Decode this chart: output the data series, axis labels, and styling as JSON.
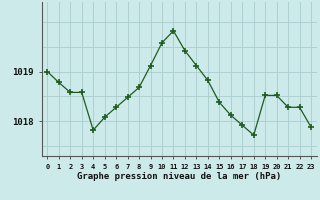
{
  "hours": [
    0,
    1,
    2,
    3,
    4,
    5,
    6,
    7,
    8,
    9,
    10,
    11,
    12,
    13,
    14,
    15,
    16,
    17,
    18,
    19,
    20,
    21,
    22,
    23
  ],
  "pressure": [
    1019.0,
    1018.78,
    1018.58,
    1018.58,
    1017.82,
    1018.08,
    1018.28,
    1018.48,
    1018.68,
    1019.12,
    1019.58,
    1019.82,
    1019.42,
    1019.12,
    1018.82,
    1018.38,
    1018.12,
    1017.92,
    1017.72,
    1018.52,
    1018.52,
    1018.28,
    1018.28,
    1017.88
  ],
  "line_color": "#1e5c1e",
  "bg_color": "#cceaea",
  "grid_color": "#aacccc",
  "xlabel": "Graphe pression niveau de la mer (hPa)",
  "ytick_labels": [
    "1018",
    "1019"
  ],
  "ytick_values": [
    1018.0,
    1019.0
  ],
  "ylim": [
    1017.3,
    1020.4
  ],
  "xlim": [
    -0.5,
    23.5
  ]
}
